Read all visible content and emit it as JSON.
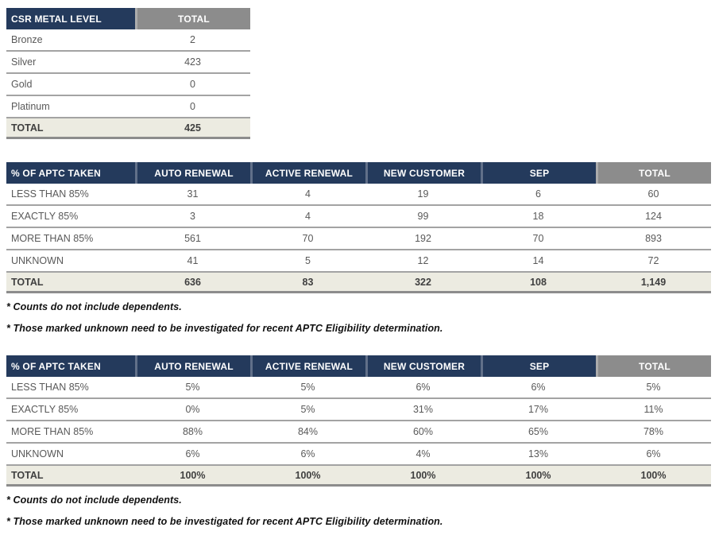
{
  "colors": {
    "header_navy": "#243A5C",
    "header_gray": "#8C8C8C",
    "total_row_bg": "#ECEBE1",
    "row_divider": "#A3A3A3",
    "table_bottom_border": "#8C8C8C",
    "data_text": "#595959",
    "total_text": "#3F3F3F"
  },
  "table1": {
    "headers": [
      "CSR METAL LEVEL",
      "TOTAL"
    ],
    "rows": [
      [
        "Bronze",
        "2"
      ],
      [
        "Silver",
        "423"
      ],
      [
        "Gold",
        "0"
      ],
      [
        "Platinum",
        "0"
      ]
    ],
    "total": [
      "TOTAL",
      "425"
    ]
  },
  "table2": {
    "headers": [
      "% OF APTC TAKEN",
      "AUTO RENEWAL",
      "ACTIVE RENEWAL",
      "NEW CUSTOMER",
      "SEP",
      "TOTAL"
    ],
    "rows": [
      [
        "LESS THAN 85%",
        "31",
        "4",
        "19",
        "6",
        "60"
      ],
      [
        "EXACTLY 85%",
        "3",
        "4",
        "99",
        "18",
        "124"
      ],
      [
        "MORE THAN 85%",
        "561",
        "70",
        "192",
        "70",
        "893"
      ],
      [
        "UNKNOWN",
        "41",
        "5",
        "12",
        "14",
        "72"
      ]
    ],
    "total": [
      "TOTAL",
      "636",
      "83",
      "322",
      "108",
      "1,149"
    ],
    "footnotes": [
      "* Counts do not include dependents.",
      "* Those marked unknown need to be investigated for recent APTC Eligibility determination."
    ]
  },
  "table3": {
    "headers": [
      "% OF APTC TAKEN",
      "AUTO RENEWAL",
      "ACTIVE RENEWAL",
      "NEW CUSTOMER",
      "SEP",
      "TOTAL"
    ],
    "rows": [
      [
        "LESS THAN 85%",
        "5%",
        "5%",
        "6%",
        "6%",
        "5%"
      ],
      [
        "EXACTLY 85%",
        "0%",
        "5%",
        "31%",
        "17%",
        "11%"
      ],
      [
        "MORE THAN 85%",
        "88%",
        "84%",
        "60%",
        "65%",
        "78%"
      ],
      [
        "UNKNOWN",
        "6%",
        "6%",
        "4%",
        "13%",
        "6%"
      ]
    ],
    "total": [
      "TOTAL",
      "100%",
      "100%",
      "100%",
      "100%",
      "100%"
    ],
    "footnotes": [
      "* Counts do not include dependents.",
      "* Those marked unknown need to be investigated for recent APTC Eligibility determination."
    ]
  }
}
